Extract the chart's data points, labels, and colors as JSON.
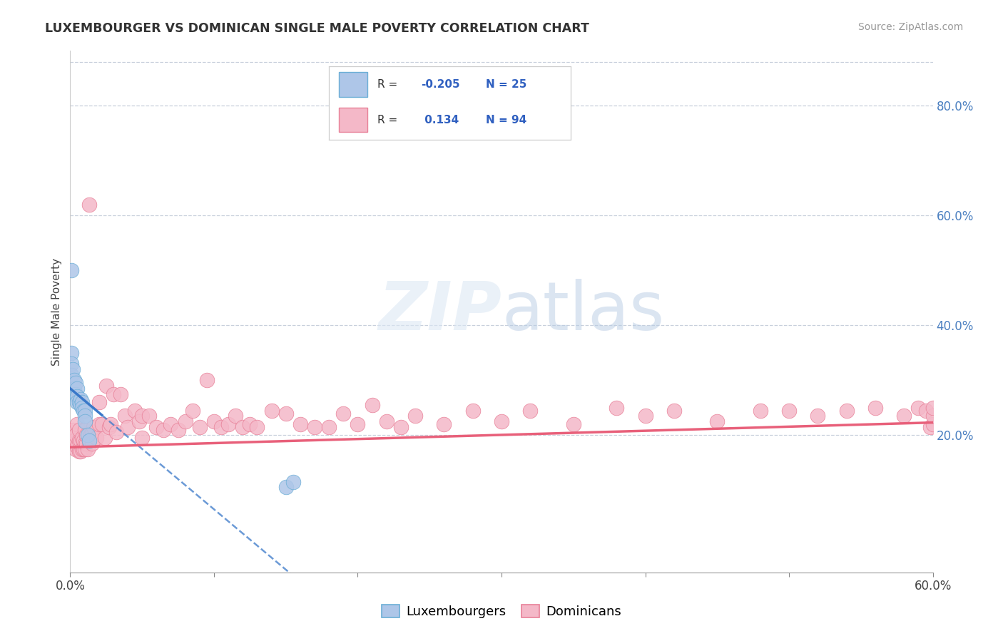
{
  "title": "LUXEMBOURGER VS DOMINICAN SINGLE MALE POVERTY CORRELATION CHART",
  "source": "Source: ZipAtlas.com",
  "ylabel": "Single Male Poverty",
  "right_yticks": [
    "80.0%",
    "60.0%",
    "40.0%",
    "20.0%"
  ],
  "right_ytick_vals": [
    0.8,
    0.6,
    0.4,
    0.2
  ],
  "legend_r_lux": "-0.205",
  "legend_n_lux": "25",
  "legend_r_dom": "0.134",
  "legend_n_dom": "94",
  "lux_color": "#aec6e8",
  "dom_color": "#f4b8c8",
  "lux_edge_color": "#6baed6",
  "dom_edge_color": "#e88098",
  "lux_line_color": "#3a78c9",
  "dom_line_color": "#e8607a",
  "background_color": "#ffffff",
  "grid_color": "#c8d0dc",
  "xlim": [
    0.0,
    0.6
  ],
  "ylim": [
    -0.05,
    0.9
  ],
  "lux_x": [
    0.001,
    0.001,
    0.001,
    0.001,
    0.002,
    0.003,
    0.003,
    0.004,
    0.004,
    0.005,
    0.005,
    0.005,
    0.006,
    0.007,
    0.007,
    0.008,
    0.008,
    0.009,
    0.01,
    0.01,
    0.01,
    0.012,
    0.013,
    0.15,
    0.155
  ],
  "lux_y": [
    0.5,
    0.35,
    0.33,
    0.31,
    0.32,
    0.3,
    0.285,
    0.295,
    0.275,
    0.285,
    0.27,
    0.26,
    0.26,
    0.265,
    0.255,
    0.26,
    0.25,
    0.245,
    0.245,
    0.235,
    0.225,
    0.2,
    0.19,
    0.105,
    0.115
  ],
  "dom_x": [
    0.001,
    0.001,
    0.002,
    0.003,
    0.004,
    0.004,
    0.005,
    0.005,
    0.006,
    0.006,
    0.006,
    0.007,
    0.007,
    0.008,
    0.008,
    0.009,
    0.009,
    0.01,
    0.01,
    0.01,
    0.011,
    0.011,
    0.012,
    0.013,
    0.013,
    0.014,
    0.015,
    0.015,
    0.016,
    0.018,
    0.02,
    0.02,
    0.022,
    0.024,
    0.025,
    0.027,
    0.028,
    0.03,
    0.032,
    0.035,
    0.038,
    0.04,
    0.045,
    0.048,
    0.05,
    0.05,
    0.055,
    0.06,
    0.065,
    0.07,
    0.075,
    0.08,
    0.085,
    0.09,
    0.095,
    0.1,
    0.105,
    0.11,
    0.115,
    0.12,
    0.125,
    0.13,
    0.14,
    0.15,
    0.16,
    0.17,
    0.18,
    0.19,
    0.2,
    0.21,
    0.22,
    0.23,
    0.24,
    0.26,
    0.28,
    0.3,
    0.32,
    0.35,
    0.38,
    0.4,
    0.42,
    0.45,
    0.48,
    0.5,
    0.52,
    0.54,
    0.56,
    0.58,
    0.59,
    0.595,
    0.598,
    0.6,
    0.6,
    0.6
  ],
  "dom_y": [
    0.195,
    0.185,
    0.21,
    0.19,
    0.175,
    0.2,
    0.18,
    0.22,
    0.17,
    0.19,
    0.21,
    0.17,
    0.19,
    0.175,
    0.195,
    0.175,
    0.19,
    0.185,
    0.175,
    0.21,
    0.185,
    0.2,
    0.175,
    0.62,
    0.19,
    0.2,
    0.205,
    0.185,
    0.215,
    0.195,
    0.26,
    0.22,
    0.22,
    0.195,
    0.29,
    0.215,
    0.22,
    0.275,
    0.205,
    0.275,
    0.235,
    0.215,
    0.245,
    0.225,
    0.235,
    0.195,
    0.235,
    0.215,
    0.21,
    0.22,
    0.21,
    0.225,
    0.245,
    0.215,
    0.3,
    0.225,
    0.215,
    0.22,
    0.235,
    0.215,
    0.22,
    0.215,
    0.245,
    0.24,
    0.22,
    0.215,
    0.215,
    0.24,
    0.22,
    0.255,
    0.225,
    0.215,
    0.235,
    0.22,
    0.245,
    0.225,
    0.245,
    0.22,
    0.25,
    0.235,
    0.245,
    0.225,
    0.245,
    0.245,
    0.235,
    0.245,
    0.25,
    0.235,
    0.25,
    0.245,
    0.215,
    0.22,
    0.235,
    0.25
  ]
}
